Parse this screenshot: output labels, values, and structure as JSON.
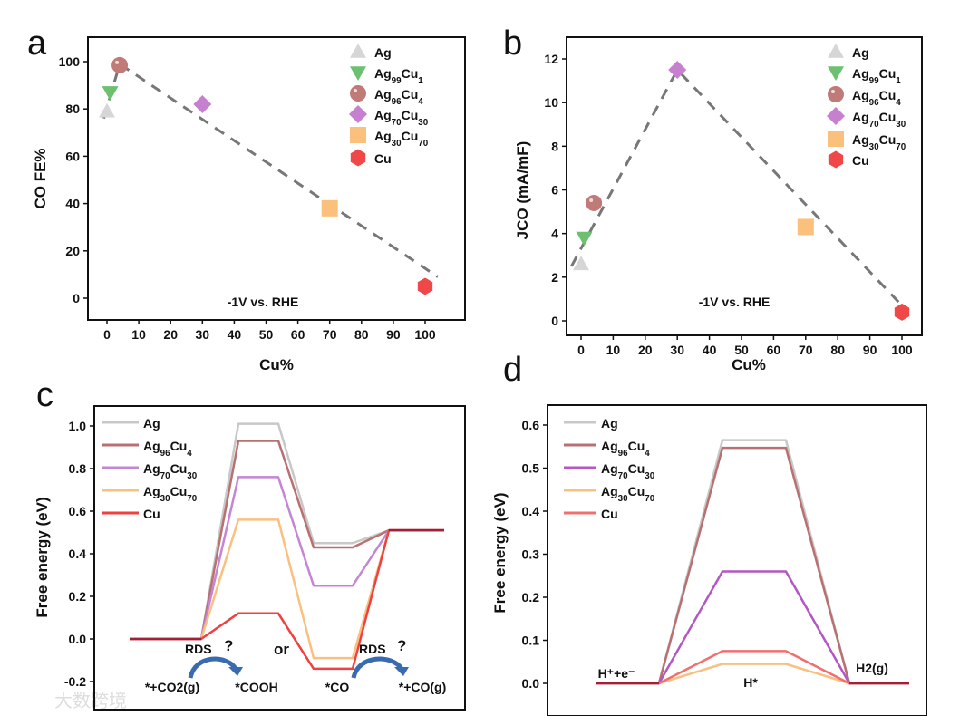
{
  "chart_data": [
    {
      "id": "a",
      "type": "scatter",
      "panel_label": "a",
      "xlabel": "Cu%",
      "ylabel": "CO FE%",
      "xlim": [
        -5,
        105
      ],
      "ylim": [
        -10,
        110
      ],
      "xticks": [
        0,
        10,
        20,
        30,
        40,
        50,
        60,
        70,
        80,
        90,
        100
      ],
      "yticks": [
        0,
        20,
        40,
        60,
        80,
        100
      ],
      "annotation": "-1V vs. RHE",
      "legend_position": "top-right",
      "series": [
        {
          "name": "Ag",
          "marker": "triangle-up",
          "color": "#d6d6d6",
          "x": 0,
          "y": 79
        },
        {
          "name": "Ag99Cu1",
          "marker": "triangle-down",
          "color": "#6cc070",
          "x": 1,
          "y": 87
        },
        {
          "name": "Ag96Cu4",
          "marker": "circle",
          "color": "#c07a78",
          "x": 4,
          "y": 98.5
        },
        {
          "name": "Ag70Cu30",
          "marker": "diamond",
          "color": "#c77fd0",
          "x": 30,
          "y": 82
        },
        {
          "name": "Ag30Cu70",
          "marker": "square",
          "color": "#fbc07c",
          "x": 70,
          "y": 38
        },
        {
          "name": "Cu",
          "marker": "hexagon",
          "color": "#f04848",
          "x": 100,
          "y": 5
        }
      ],
      "trend_line": {
        "x": [
          -1,
          4,
          104
        ],
        "y": [
          76,
          99,
          9
        ]
      }
    },
    {
      "id": "b",
      "type": "scatter",
      "panel_label": "b",
      "xlabel": "Cu%",
      "ylabel": "JCO (mA/mF)",
      "xlim": [
        -5,
        105
      ],
      "ylim": [
        0,
        13
      ],
      "xticks": [
        0,
        10,
        20,
        30,
        40,
        50,
        60,
        70,
        80,
        90,
        100
      ],
      "yticks": [
        0,
        2,
        4,
        6,
        8,
        10,
        12
      ],
      "annotation": "-1V vs. RHE",
      "legend_position": "top-right",
      "series": [
        {
          "name": "Ag",
          "marker": "triangle-up",
          "color": "#d6d6d6",
          "x": 0,
          "y": 2.6
        },
        {
          "name": "Ag99Cu1",
          "marker": "triangle-down",
          "color": "#6cc070",
          "x": 1,
          "y": 3.8
        },
        {
          "name": "Ag96Cu4",
          "marker": "circle",
          "color": "#c07a78",
          "x": 4,
          "y": 5.4
        },
        {
          "name": "Ag70Cu30",
          "marker": "diamond",
          "color": "#c77fd0",
          "x": 30,
          "y": 11.5
        },
        {
          "name": "Ag30Cu70",
          "marker": "square",
          "color": "#fbc07c",
          "x": 70,
          "y": 4.3
        },
        {
          "name": "Cu",
          "marker": "hexagon",
          "color": "#f04848",
          "x": 100,
          "y": 0.4
        }
      ],
      "trend_line": {
        "x": [
          -3,
          30,
          100
        ],
        "y": [
          2.5,
          11.5,
          0.7
        ]
      }
    },
    {
      "id": "c",
      "type": "line",
      "panel_label": "c",
      "ylabel": "Free energy (eV)",
      "ylim": [
        -0.25,
        1.1
      ],
      "yticks": [
        -0.2,
        0.0,
        0.2,
        0.4,
        0.6,
        0.8,
        1.0
      ],
      "ytick_labels": [
        "-0.2",
        "0.0",
        "0.2",
        "0.4",
        "0.6",
        "0.8",
        "1.0"
      ],
      "states": [
        "*+CO2(g)",
        "*COOH",
        "*CO",
        "*+CO(g)"
      ],
      "annotations": [
        "RDS",
        "?",
        "or",
        "RDS",
        "?"
      ],
      "legend_position": "top-left",
      "series": [
        {
          "name": "Ag",
          "color": "#c8c8c8",
          "values": [
            0,
            1.01,
            0.45,
            0.51
          ]
        },
        {
          "name": "Ag96Cu4",
          "color": "#b87070",
          "values": [
            0,
            0.93,
            0.43,
            0.51
          ]
        },
        {
          "name": "Ag70Cu30",
          "color": "#c585d5",
          "values": [
            0,
            0.76,
            0.25,
            0.51
          ]
        },
        {
          "name": "Ag30Cu70",
          "color": "#f9c080",
          "values": [
            0,
            0.56,
            -0.09,
            0.51
          ]
        },
        {
          "name": "Cu",
          "color": "#f04040",
          "values": [
            0,
            0.12,
            -0.14,
            0.51
          ]
        }
      ]
    },
    {
      "id": "d",
      "type": "line",
      "panel_label": "d",
      "ylabel": "Free energy (eV)",
      "ylim": [
        -0.05,
        0.65
      ],
      "yticks": [
        0.0,
        0.1,
        0.2,
        0.3,
        0.4,
        0.5,
        0.6
      ],
      "ytick_labels": [
        "0.0",
        "0.1",
        "0.2",
        "0.3",
        "0.4",
        "0.5",
        "0.6"
      ],
      "states": [
        "H⁺+e⁻",
        "H*",
        "H2(g)"
      ],
      "legend_position": "top-left",
      "series": [
        {
          "name": "Ag",
          "color": "#c8c8c8",
          "values": [
            0,
            0.565,
            0
          ]
        },
        {
          "name": "Ag96Cu4",
          "color": "#b87070",
          "values": [
            0,
            0.547,
            0
          ]
        },
        {
          "name": "Ag70Cu30",
          "color": "#b456c4",
          "values": [
            0,
            0.26,
            0
          ]
        },
        {
          "name": "Ag30Cu70",
          "color": "#f9c080",
          "values": [
            0,
            0.045,
            0
          ]
        },
        {
          "name": "Cu",
          "color": "#f07070",
          "values": [
            0,
            0.075,
            0
          ]
        }
      ]
    }
  ],
  "watermark": "大数跨境",
  "colors": {
    "trend": "#777777",
    "arrow": "#3a6ab0",
    "final_state": "#a0203a"
  }
}
